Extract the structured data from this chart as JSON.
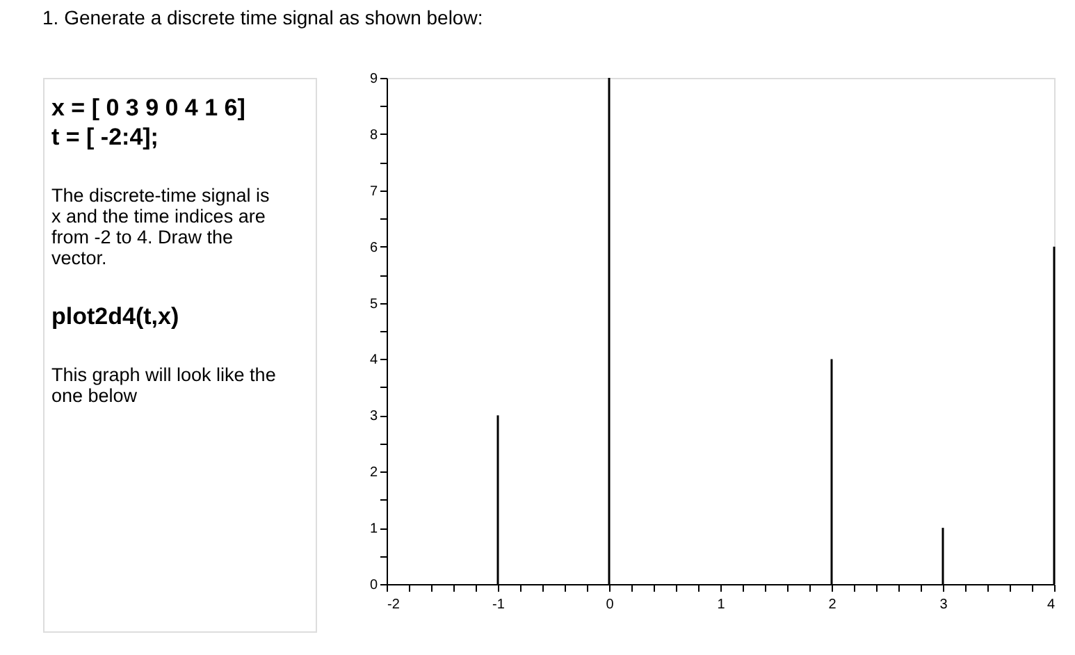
{
  "chart_data": {
    "type": "bar",
    "title": "1.   Generate a discrete time signal as shown below:",
    "annotations": [
      "x = [ 0 3 9 0 4 1 6]\nt = [ -2:4];",
      "The discrete-time signal is\nx and the time indices are\nfrom -2 to 4. Draw the\nvector.",
      "plot2d4(t,x)",
      "This graph will look like the\none below"
    ],
    "x": [
      -2,
      -1,
      0,
      1,
      2,
      3,
      4
    ],
    "values": [
      0,
      3,
      9,
      0,
      4,
      1,
      6
    ],
    "color": "#000000",
    "grid": false,
    "xlim": [
      -2,
      4
    ],
    "ylim": [
      0,
      9
    ],
    "xticks": [
      -2,
      {
        "value": -1.8,
        "label": null
      },
      {
        "value": -1.6,
        "label": null
      },
      {
        "value": -1.4,
        "label": null
      },
      {
        "value": -1.2,
        "label": null
      },
      -1,
      {
        "value": -0.8,
        "label": null
      },
      {
        "value": -0.6,
        "label": null
      },
      {
        "value": -0.4,
        "label": null
      },
      {
        "value": -0.2,
        "label": null
      },
      0,
      {
        "value": 0.2,
        "label": null
      },
      {
        "value": 0.4,
        "label": null
      },
      {
        "value": 0.6,
        "label": null
      },
      {
        "value": 0.8,
        "label": null
      },
      1,
      {
        "value": 1.2,
        "label": null
      },
      {
        "value": 1.4,
        "label": null
      },
      {
        "value": 1.6,
        "label": null
      },
      {
        "value": 1.8,
        "label": null
      },
      2,
      {
        "value": 2.2,
        "label": null
      },
      {
        "value": 2.4,
        "label": null
      },
      {
        "value": 2.6,
        "label": null
      },
      {
        "value": 2.8,
        "label": null
      },
      3,
      {
        "value": 3.2,
        "label": null
      },
      {
        "value": 3.4,
        "label": null
      },
      {
        "value": 3.6,
        "label": null
      },
      {
        "value": 3.8,
        "label": null
      },
      4
    ],
    "yticks": [
      0,
      {
        "value": 0.5,
        "label": null
      },
      1,
      {
        "value": 1.5,
        "label": null
      },
      2,
      {
        "value": 2.5,
        "label": null
      },
      3,
      {
        "value": 3.5,
        "label": null
      },
      4,
      {
        "value": 4.5,
        "label": null
      },
      5,
      {
        "value": 5.5,
        "label": null
      },
      6,
      {
        "value": 6.5,
        "label": null
      },
      7,
      {
        "value": 7.5,
        "label": null
      },
      8,
      {
        "value": 8.5,
        "label": null
      },
      9
    ]
  }
}
